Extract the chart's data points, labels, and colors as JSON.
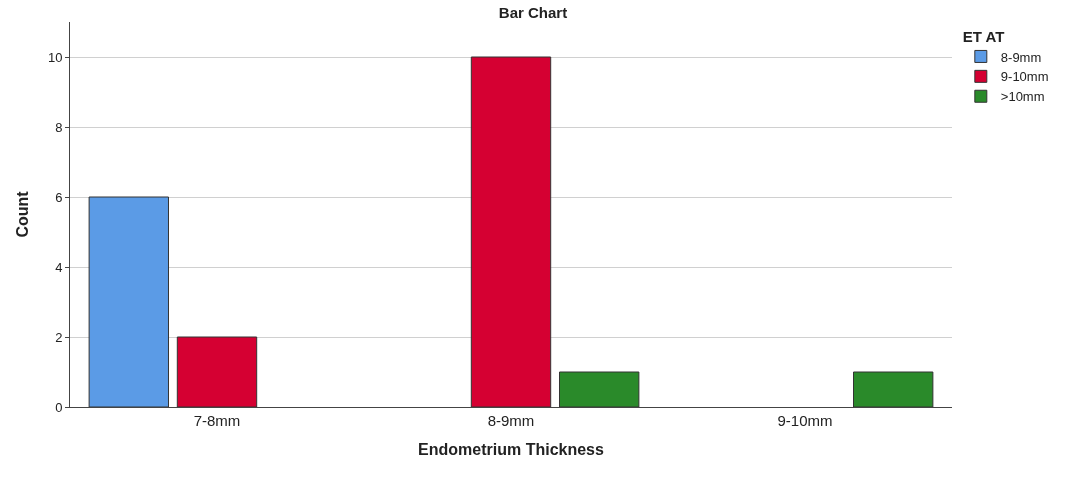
{
  "chart_data": {
    "type": "bar",
    "title": "Bar Chart",
    "xlabel": "Endometrium Thickness",
    "ylabel": "Count",
    "legend_title": "ET AT",
    "categories": [
      "7-8mm",
      "8-9mm",
      "9-10mm"
    ],
    "series": [
      {
        "name": "8-9mm",
        "color": "#5b9be6",
        "values": [
          6,
          null,
          null
        ]
      },
      {
        "name": "9-10mm",
        "color": "#d50032",
        "values": [
          2,
          10,
          null
        ]
      },
      {
        "name": ">10mm",
        "color": "#2a8a2a",
        "values": [
          null,
          1,
          1
        ]
      }
    ],
    "ylim": [
      0,
      11
    ],
    "yticks": [
      0,
      2,
      4,
      6,
      8,
      10
    ],
    "grid": "y",
    "legend": "top right"
  }
}
